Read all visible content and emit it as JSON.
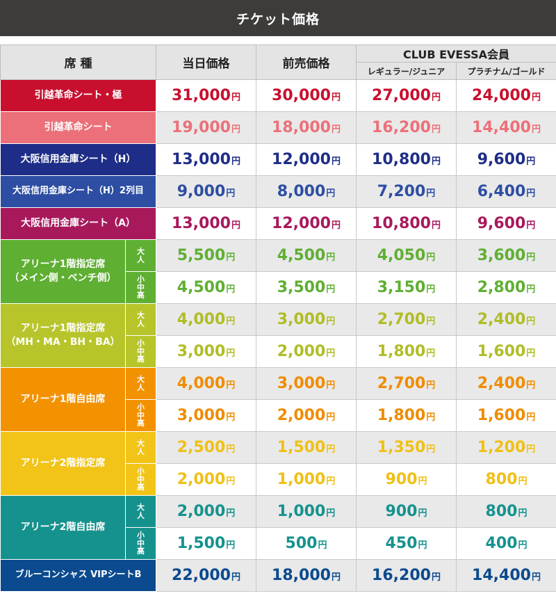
{
  "title": "チケット価格",
  "header": {
    "seat_label": "席 種",
    "same_day_label": "当日価格",
    "advance_label": "前売価格",
    "club_label": "CLUB EVESSA会員",
    "regular_label": "レギュラー/ジュニア",
    "platinum_label": "プラチナム/ゴールド"
  },
  "currency_unit": "円",
  "rows": [
    {
      "seat": "引越革命シート・極",
      "color": "#c8102e",
      "text_color": "#c8102e",
      "prices": [
        "31,000",
        "30,000",
        "27,000",
        "24,000"
      ]
    },
    {
      "seat": "引越革命シート",
      "color": "#ec7079",
      "text_color": "#ec7079",
      "prices": [
        "19,000",
        "18,000",
        "16,200",
        "14,400"
      ]
    },
    {
      "seat": "大阪信用金庫シート（H）",
      "color": "#1e2d87",
      "text_color": "#1e2d87",
      "prices": [
        "13,000",
        "12,000",
        "10,800",
        "9,600"
      ]
    },
    {
      "seat": "大阪信用金庫シート（H）2列目",
      "color": "#2d4ea3",
      "text_color": "#2d4ea3",
      "prices": [
        "9,000",
        "8,000",
        "7,200",
        "6,400"
      ]
    },
    {
      "seat": "大阪信用金庫シート（A）",
      "color": "#a8195c",
      "text_color": "#a8195c",
      "prices": [
        "13,000",
        "12,000",
        "10,800",
        "9,600"
      ]
    }
  ],
  "groups": [
    {
      "seat_line1": "アリーナ1階指定席",
      "seat_line2": "（メイン側・ベンチ側）",
      "color": "#5faf32",
      "text_color": "#5faf32",
      "rows": [
        {
          "age": "大人",
          "prices": [
            "5,500",
            "4,500",
            "4,050",
            "3,600"
          ]
        },
        {
          "age": "小中高",
          "prices": [
            "4,500",
            "3,500",
            "3,150",
            "2,800"
          ]
        }
      ]
    },
    {
      "seat_line1": "アリーナ1階指定席",
      "seat_line2": "（MH・MA・BH・BA）",
      "color": "#b7c52a",
      "text_color": "#b0bd26",
      "rows": [
        {
          "age": "大人",
          "prices": [
            "4,000",
            "3,000",
            "2,700",
            "2,400"
          ]
        },
        {
          "age": "小中高",
          "prices": [
            "3,000",
            "2,000",
            "1,800",
            "1,600"
          ]
        }
      ]
    },
    {
      "seat_line1": "アリーナ1階自由席",
      "seat_line2": "",
      "color": "#f39200",
      "text_color": "#f08c00",
      "rows": [
        {
          "age": "大人",
          "prices": [
            "4,000",
            "3,000",
            "2,700",
            "2,400"
          ]
        },
        {
          "age": "小中高",
          "prices": [
            "3,000",
            "2,000",
            "1,800",
            "1,600"
          ]
        }
      ]
    },
    {
      "seat_line1": "アリーナ2階指定席",
      "seat_line2": "",
      "color": "#f2c418",
      "text_color": "#f0c016",
      "rows": [
        {
          "age": "大人",
          "prices": [
            "2,500",
            "1,500",
            "1,350",
            "1,200"
          ]
        },
        {
          "age": "小中高",
          "prices": [
            "2,000",
            "1,000",
            "900",
            "800"
          ]
        }
      ]
    },
    {
      "seat_line1": "アリーナ2階自由席",
      "seat_line2": "",
      "color": "#16928e",
      "text_color": "#16928e",
      "rows": [
        {
          "age": "大人",
          "prices": [
            "2,000",
            "1,000",
            "900",
            "800"
          ]
        },
        {
          "age": "小中高",
          "prices": [
            "1,500",
            "500",
            "450",
            "400"
          ]
        }
      ]
    }
  ],
  "last_row": {
    "seat": "ブルーコンシャス VIPシートB",
    "color": "#0b4a8e",
    "text_color": "#0b4a8e",
    "prices": [
      "22,000",
      "18,000",
      "16,200",
      "14,400"
    ]
  }
}
